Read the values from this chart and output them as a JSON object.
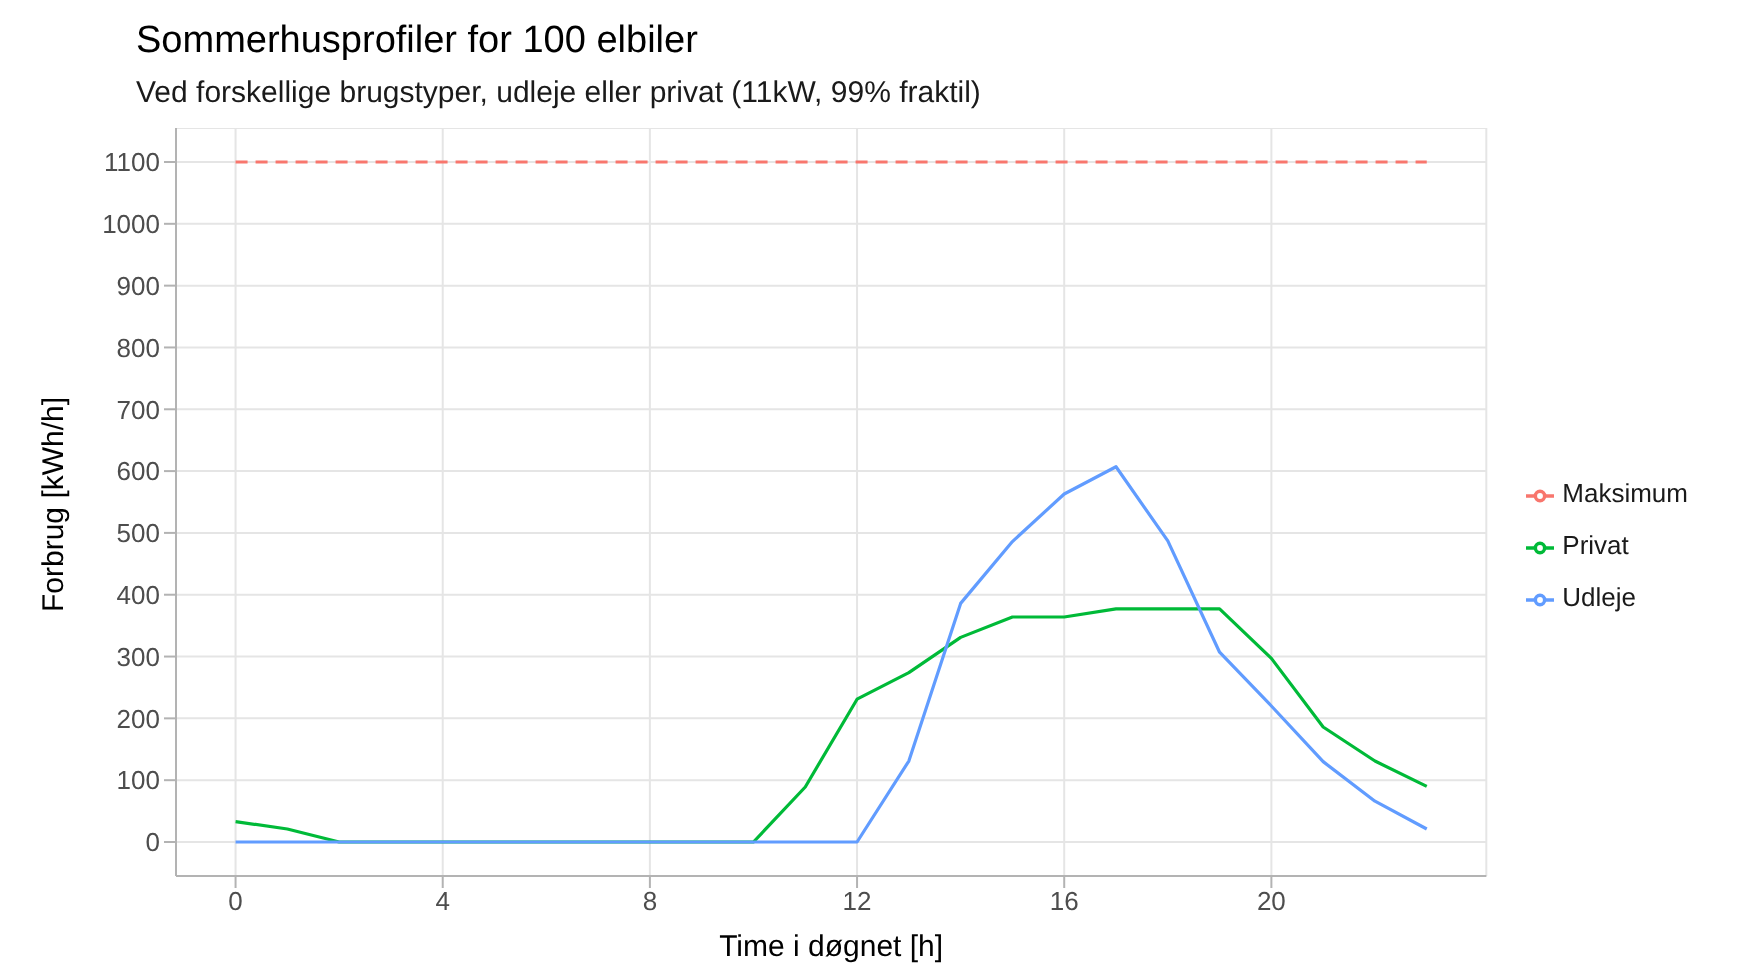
{
  "chart_data": {
    "type": "line",
    "title": "Sommerhusprofiler for 100 elbiler",
    "subtitle": "Ved forskellige brugstyper, udleje eller privat (11kW, 99% fraktil)",
    "xlabel": "Time i døgnet [h]",
    "ylabel": "Forbrug [kWh/h]",
    "x": [
      0,
      1,
      2,
      3,
      4,
      5,
      6,
      7,
      8,
      9,
      10,
      11,
      12,
      13,
      14,
      15,
      16,
      17,
      18,
      19,
      20,
      21,
      22,
      23
    ],
    "series": [
      {
        "name": "Maksimum",
        "color": "#f8766d",
        "line_style": "dashed",
        "values": [
          1100,
          1100,
          1100,
          1100,
          1100,
          1100,
          1100,
          1100,
          1100,
          1100,
          1100,
          1100,
          1100,
          1100,
          1100,
          1100,
          1100,
          1100,
          1100,
          1100,
          1100,
          1100,
          1100,
          1100
        ]
      },
      {
        "name": "Privat",
        "color": "#00ba38",
        "values": [
          33,
          21,
          0,
          0,
          0,
          0,
          0,
          0,
          0,
          0,
          0,
          89,
          231,
          274,
          331,
          364,
          364,
          377,
          377,
          377,
          297,
          186,
          131,
          90
        ]
      },
      {
        "name": "Udleje",
        "color": "#619cff",
        "values": [
          0,
          0,
          0,
          0,
          0,
          0,
          0,
          0,
          0,
          0,
          0,
          0,
          0,
          131,
          386,
          486,
          563,
          607,
          487,
          307,
          220,
          130,
          66,
          21
        ]
      }
    ],
    "xlim": [
      -1.15,
      24.15
    ],
    "xticks": [
      0,
      4,
      8,
      12,
      16,
      20
    ],
    "ylim": [
      -55,
      1155
    ],
    "yticks": [
      0,
      100,
      200,
      300,
      400,
      500,
      600,
      700,
      800,
      900,
      1000,
      1100
    ],
    "grid": true,
    "legend": "right",
    "line_style": "solid",
    "marker": "none"
  }
}
